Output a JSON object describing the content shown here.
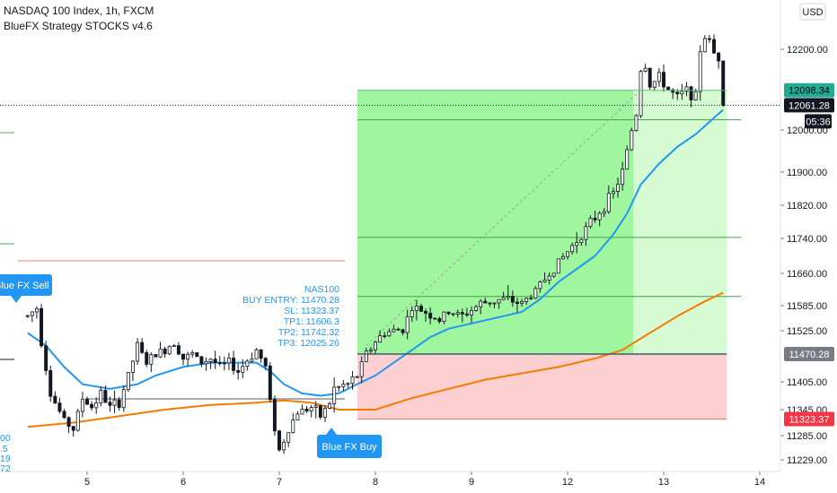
{
  "header": {
    "symbol_line": "NASDAQ 100 Index, 1h, FXCM",
    "indicator_line": "BlueFX Strategy STOCKS v4.6",
    "currency": "USD"
  },
  "chart_data": {
    "type": "candlestick",
    "ylim": [
      11210,
      12280
    ],
    "y_ticks": [
      11229.0,
      11285.0,
      11345.0,
      11405.0,
      11525.0,
      11585.0,
      11660.0,
      11740.0,
      11820.0,
      11900.0,
      12000.0,
      12200.0
    ],
    "y_tick_labels": [
      "11229.00",
      "11285.00",
      "11345.00",
      "11405.00",
      "11525.00",
      "11585.00",
      "11660.00",
      "11740.00",
      "11820.00",
      "11900.00",
      "12000.00",
      "12200.00"
    ],
    "x_ticks": [
      {
        "label": "5",
        "bar": 13
      },
      {
        "label": "6",
        "bar": 34
      },
      {
        "label": "7",
        "bar": 55
      },
      {
        "label": "8",
        "bar": 76
      },
      {
        "label": "9",
        "bar": 97
      },
      {
        "label": "12",
        "bar": 118
      },
      {
        "label": "13",
        "bar": 139
      },
      {
        "label": "14",
        "bar": 160
      }
    ],
    "bars_shown": 166,
    "last_bar": 152,
    "price_path": [
      [
        0,
        11560
      ],
      [
        2,
        11580
      ],
      [
        3,
        11500
      ],
      [
        5,
        11380
      ],
      [
        8,
        11320
      ],
      [
        10,
        11300
      ],
      [
        12,
        11370
      ],
      [
        14,
        11350
      ],
      [
        16,
        11380
      ],
      [
        18,
        11350
      ],
      [
        20,
        11360
      ],
      [
        22,
        11420
      ],
      [
        24,
        11490
      ],
      [
        26,
        11450
      ],
      [
        28,
        11470
      ],
      [
        30,
        11480
      ],
      [
        32,
        11500
      ],
      [
        34,
        11460
      ],
      [
        36,
        11470
      ],
      [
        38,
        11450
      ],
      [
        40,
        11460
      ],
      [
        42,
        11440
      ],
      [
        44,
        11450
      ],
      [
        46,
        11430
      ],
      [
        50,
        11480
      ],
      [
        52,
        11440
      ],
      [
        53,
        11360
      ],
      [
        55,
        11250
      ],
      [
        57,
        11300
      ],
      [
        59,
        11340
      ],
      [
        62,
        11350
      ],
      [
        64,
        11330
      ],
      [
        66,
        11360
      ],
      [
        67,
        11390
      ],
      [
        70,
        11400
      ],
      [
        72,
        11420
      ],
      [
        74,
        11470
      ],
      [
        76,
        11500
      ],
      [
        78,
        11520
      ],
      [
        82,
        11530
      ],
      [
        84,
        11580
      ],
      [
        87,
        11570
      ],
      [
        90,
        11550
      ],
      [
        92,
        11570
      ],
      [
        95,
        11560
      ],
      [
        99,
        11590
      ],
      [
        104,
        11600
      ],
      [
        108,
        11590
      ],
      [
        111,
        11620
      ],
      [
        114,
        11660
      ],
      [
        118,
        11710
      ],
      [
        121,
        11750
      ],
      [
        124,
        11790
      ],
      [
        126,
        11820
      ],
      [
        128,
        11850
      ],
      [
        130,
        11900
      ],
      [
        132,
        12000
      ],
      [
        133,
        12040
      ],
      [
        134,
        12150
      ],
      [
        135,
        12160
      ],
      [
        136,
        12110
      ],
      [
        138,
        12130
      ],
      [
        140,
        12100
      ],
      [
        142,
        12080
      ],
      [
        144,
        12100
      ],
      [
        146,
        12080
      ],
      [
        147,
        12200
      ],
      [
        148,
        12230
      ],
      [
        149,
        12220
      ],
      [
        150,
        12190
      ],
      [
        151,
        12180
      ],
      [
        152,
        12061
      ]
    ],
    "series": [
      {
        "points": [
          [
            0,
            11520
          ],
          [
            4,
            11490
          ],
          [
            8,
            11440
          ],
          [
            12,
            11400
          ],
          [
            18,
            11390
          ],
          [
            24,
            11400
          ],
          [
            28,
            11420
          ],
          [
            34,
            11440
          ],
          [
            40,
            11450
          ],
          [
            46,
            11450
          ],
          [
            50,
            11450
          ],
          [
            53,
            11430
          ],
          [
            56,
            11400
          ],
          [
            60,
            11380
          ],
          [
            64,
            11375
          ],
          [
            68,
            11380
          ],
          [
            72,
            11400
          ],
          [
            76,
            11420
          ],
          [
            80,
            11450
          ],
          [
            84,
            11480
          ],
          [
            88,
            11510
          ],
          [
            92,
            11530
          ],
          [
            98,
            11545
          ],
          [
            104,
            11560
          ],
          [
            108,
            11570
          ],
          [
            112,
            11600
          ],
          [
            116,
            11640
          ],
          [
            120,
            11670
          ],
          [
            124,
            11700
          ],
          [
            128,
            11750
          ],
          [
            131,
            11800
          ],
          [
            134,
            11870
          ],
          [
            138,
            11920
          ],
          [
            142,
            11960
          ],
          [
            146,
            11990
          ],
          [
            150,
            12030
          ],
          [
            152,
            12050
          ]
        ]
      },
      {
        "points": [
          [
            0,
            11305
          ],
          [
            10,
            11315
          ],
          [
            20,
            11330
          ],
          [
            30,
            11345
          ],
          [
            40,
            11355
          ],
          [
            50,
            11360
          ],
          [
            56,
            11365
          ],
          [
            62,
            11360
          ],
          [
            68,
            11345
          ],
          [
            76,
            11345
          ],
          [
            84,
            11370
          ],
          [
            92,
            11390
          ],
          [
            100,
            11410
          ],
          [
            108,
            11425
          ],
          [
            116,
            11440
          ],
          [
            124,
            11460
          ],
          [
            130,
            11480
          ],
          [
            136,
            11520
          ],
          [
            142,
            11560
          ],
          [
            148,
            11595
          ],
          [
            152,
            11615
          ]
        ]
      }
    ],
    "horizontal_lines": [
      {
        "price": 12098.34
      },
      {
        "price": 12061.28
      },
      {
        "price": 11470.28
      },
      {
        "price": 11323.37
      }
    ],
    "annotations": {
      "sell_signal": "Blue FX Sell",
      "buy_signal": "Blue FX Buy",
      "trade_info": [
        "NAS100",
        "BUY ENTRY: 11470.28",
        "SL: 11323.37",
        "TP1: 11606.3",
        "TP2: 11742.32",
        "TP3: 12025.26"
      ],
      "left_clipped_values": [
        "00",
        ".5",
        "19",
        "72"
      ]
    },
    "position": {
      "entry": 11470.28,
      "stop_loss": 11323.37,
      "target": 12098.34,
      "tp1": 11606.3,
      "tp2": 11742.32,
      "tp3": 12025.26,
      "start_bar": 76,
      "end_bar": 152
    },
    "price_badges": [
      {
        "label": "12098.34",
        "bg": "#22ab94",
        "fg": "#000000"
      },
      {
        "label": "12061.28",
        "bg": "#131722",
        "fg": "#ffffff"
      },
      {
        "label": "05:36",
        "bg": "#131722",
        "fg": "#ffffff"
      },
      {
        "label": "11470.28",
        "bg": "#787b86",
        "fg": "#ffffff"
      },
      {
        "label": "11323.37",
        "bg": "#f23645",
        "fg": "#ffffff"
      }
    ],
    "colors": {
      "up": "#26a69a",
      "down": "#ef5350",
      "ma_fast": "#2196f3",
      "ma_slow": "#ff9800",
      "profit": "#8ff58d",
      "loss": "#fbc8c8",
      "signal": "#2196f3"
    }
  }
}
